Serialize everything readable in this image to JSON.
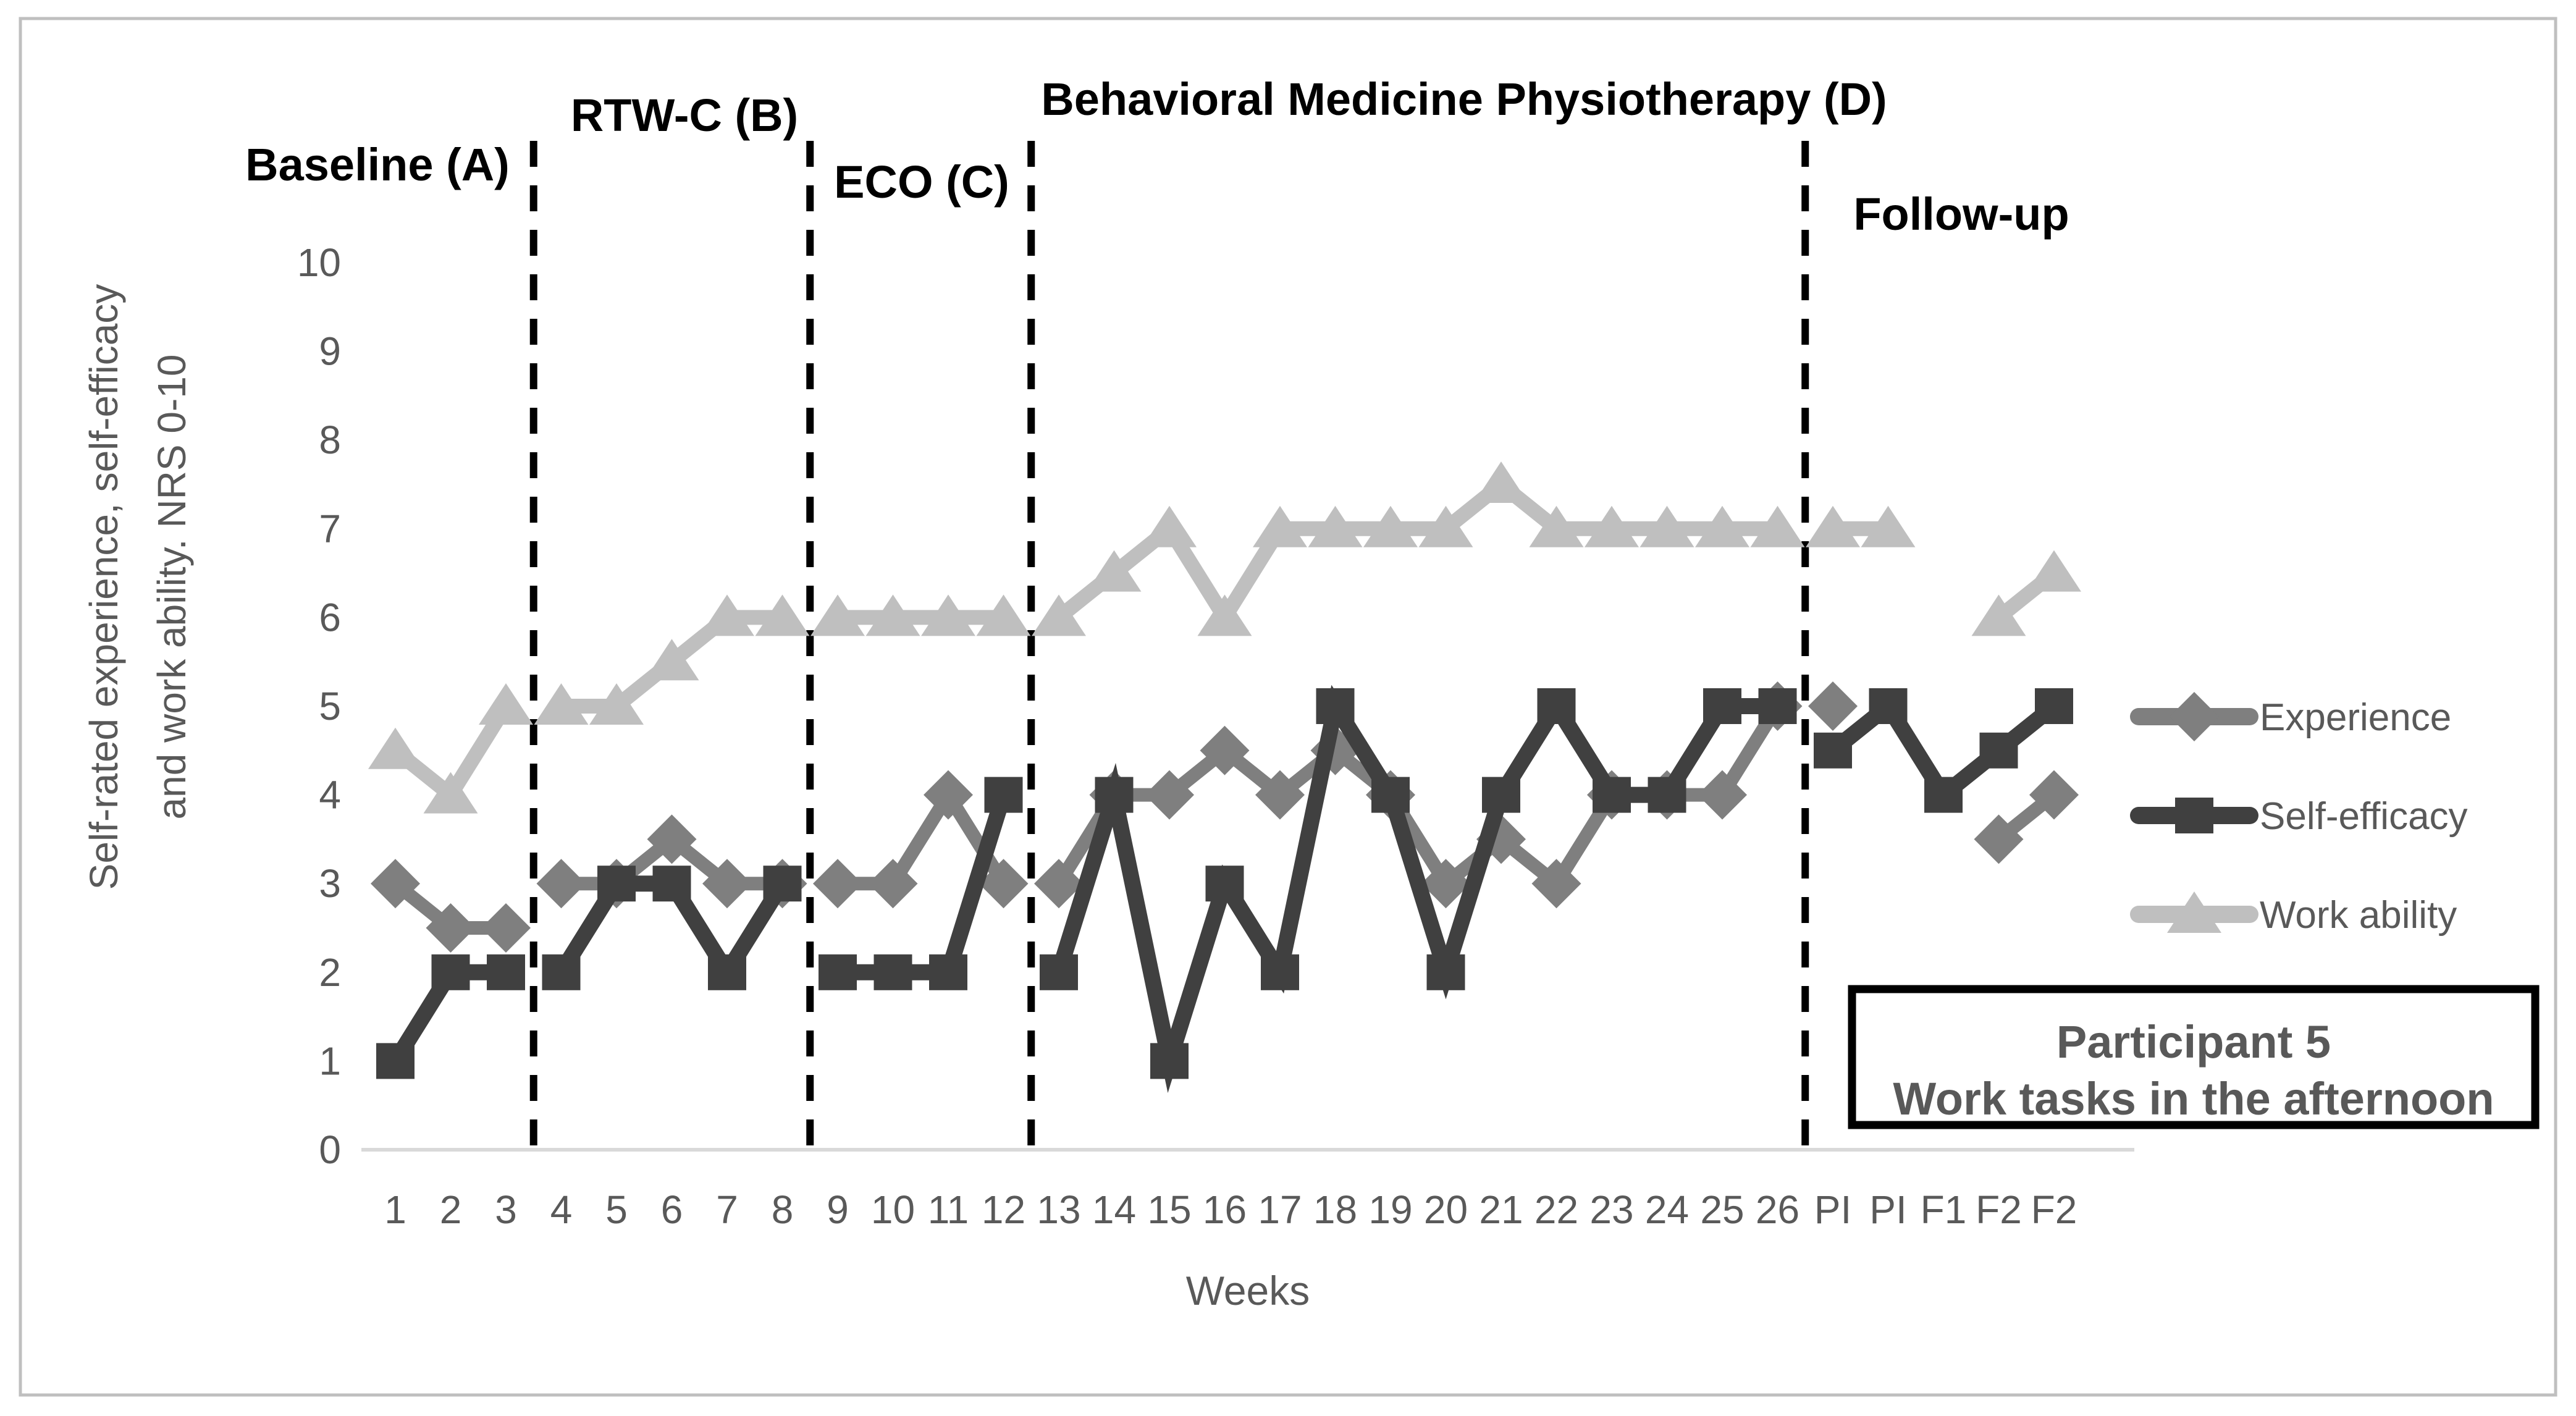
{
  "figure": {
    "background": "#ffffff",
    "border_color": "#bfbfbf"
  },
  "phase_labels": [
    {
      "text": "Baseline (A)"
    },
    {
      "text": "RTW-C (B)"
    },
    {
      "text": "ECO (C)"
    },
    {
      "text": "Behavioral Medicine Physiotherapy (D)"
    },
    {
      "text": "Follow-up"
    }
  ],
  "y_axis_title_line1": "Self-rated experience, self-efficacy",
  "y_axis_title_line2": "and work ability. NRS 0-10",
  "annotation_box": {
    "line1": "Participant 5",
    "line2": "Work tasks in the afternoon"
  },
  "chart_data": {
    "type": "line",
    "title": "",
    "xlabel": "Weeks",
    "ylabel": "Self-rated experience, self-efficacy and work ability. NRS 0-10",
    "ylim": [
      0,
      10
    ],
    "y_ticks": [
      0,
      1,
      2,
      3,
      4,
      5,
      6,
      7,
      8,
      9,
      10
    ],
    "grid": false,
    "legend_position": "right",
    "axis_text_color": "#595959",
    "axis_line_color": "#d9d9d9",
    "phase_divider_color": "#000000",
    "x": [
      "1",
      "2",
      "3",
      "4",
      "5",
      "6",
      "7",
      "8",
      "9",
      "10",
      "11",
      "12",
      "13",
      "14",
      "15",
      "16",
      "17",
      "18",
      "19",
      "20",
      "21",
      "22",
      "23",
      "24",
      "25",
      "26",
      "PI",
      "PI",
      "F1",
      "F2",
      "F2"
    ],
    "phases": [
      "Baseline (A)",
      "RTW-C (B)",
      "ECO (C)",
      "Behavioral Medicine Physiotherapy (D)",
      "Follow-up"
    ],
    "phase_break_after_indices": [
      2,
      7,
      11,
      25
    ],
    "series": [
      {
        "name": "Experience",
        "marker": "diamond",
        "color": "#7f7f7f",
        "values": [
          3,
          2.5,
          2.5,
          3,
          3,
          3.5,
          3,
          3,
          3,
          3,
          4,
          3,
          3,
          4,
          4,
          4.5,
          4,
          4.5,
          4,
          3,
          3.5,
          3,
          4,
          4,
          4,
          5,
          5,
          null,
          null,
          3.5,
          4
        ]
      },
      {
        "name": "Self-efficacy",
        "marker": "square",
        "color": "#404040",
        "values": [
          1,
          2,
          2,
          2,
          3,
          3,
          2,
          3,
          2,
          2,
          2,
          4,
          2,
          4,
          1,
          3,
          2,
          5,
          4,
          2,
          4,
          5,
          4,
          4,
          5,
          5,
          4.5,
          5,
          4,
          4.5,
          5
        ]
      },
      {
        "name": "Work ability",
        "marker": "triangle",
        "color": "#bfbfbf",
        "values": [
          4.5,
          4,
          5,
          5,
          5,
          5.5,
          6,
          6,
          6,
          6,
          6,
          6,
          6,
          6.5,
          7,
          6,
          7,
          7,
          7,
          7,
          7.5,
          7,
          7,
          7,
          7,
          7,
          7,
          7,
          null,
          6,
          6.5
        ]
      }
    ]
  }
}
